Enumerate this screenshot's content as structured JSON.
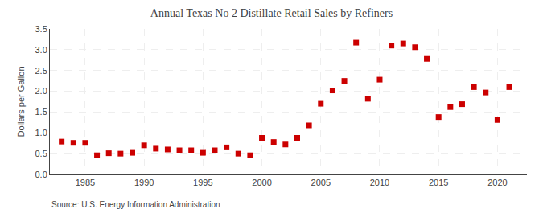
{
  "chart_data": {
    "type": "scatter",
    "title": "Annual Texas No 2 Distillate Retail Sales by Refiners",
    "ylabel": "Dollars per Gallon",
    "annotations": [
      "Source: U.S. Energy Information Administration"
    ],
    "color": "#CC0000",
    "marker": "square",
    "grid": true,
    "xlim": [
      1982,
      2022.5
    ],
    "ylim": [
      0.0,
      3.5
    ],
    "xticks": [
      1985,
      1990,
      1995,
      2000,
      2005,
      2010,
      2015,
      2020
    ],
    "yticks": [
      {
        "value": 0.0,
        "label": "0.0"
      },
      0.5,
      {
        "value": 1.0,
        "label": "1.0"
      },
      1.5,
      {
        "value": 2.0,
        "label": "2.0"
      },
      2.5,
      {
        "value": 3.0,
        "label": "3.0"
      },
      3.5
    ],
    "x": [
      1983,
      1984,
      1985,
      1986,
      1987,
      1988,
      1989,
      1990,
      1991,
      1992,
      1993,
      1994,
      1995,
      1996,
      1997,
      1998,
      1999,
      2000,
      2001,
      2002,
      2003,
      2004,
      2005,
      2006,
      2007,
      2008,
      2009,
      2010,
      2011,
      2012,
      2013,
      2014,
      2015,
      2016,
      2017,
      2018,
      2019,
      2020,
      2021
    ],
    "values": [
      0.79,
      0.76,
      0.76,
      0.46,
      0.51,
      0.5,
      0.52,
      0.7,
      0.62,
      0.6,
      0.58,
      0.58,
      0.52,
      0.58,
      0.65,
      0.5,
      0.46,
      0.88,
      0.78,
      0.72,
      0.88,
      1.18,
      1.7,
      2.02,
      2.25,
      3.17,
      1.82,
      2.28,
      3.1,
      3.15,
      3.06,
      2.78,
      1.38,
      1.62,
      1.69,
      2.1,
      1.97,
      1.31,
      2.1
    ]
  }
}
